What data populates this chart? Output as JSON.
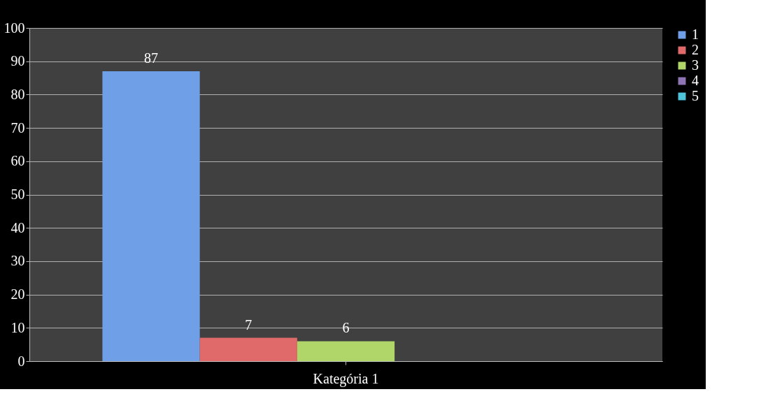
{
  "chart_data": {
    "type": "bar",
    "categories": [
      "Kategória 1"
    ],
    "series": [
      {
        "name": "1",
        "color": "#6f9fe6",
        "values": [
          87
        ]
      },
      {
        "name": "2",
        "color": "#e06a6a",
        "values": [
          7
        ]
      },
      {
        "name": "3",
        "color": "#b0d66a",
        "values": [
          6
        ]
      },
      {
        "name": "4",
        "color": "#8f75b5",
        "values": [
          null
        ]
      },
      {
        "name": "5",
        "color": "#4fc3dc",
        "values": [
          null
        ]
      }
    ],
    "ylim": [
      0,
      100
    ],
    "yticks": [
      0,
      10,
      20,
      30,
      40,
      50,
      60,
      70,
      80,
      90,
      100
    ],
    "grid": "y",
    "legend": "right",
    "data_labels": true
  }
}
